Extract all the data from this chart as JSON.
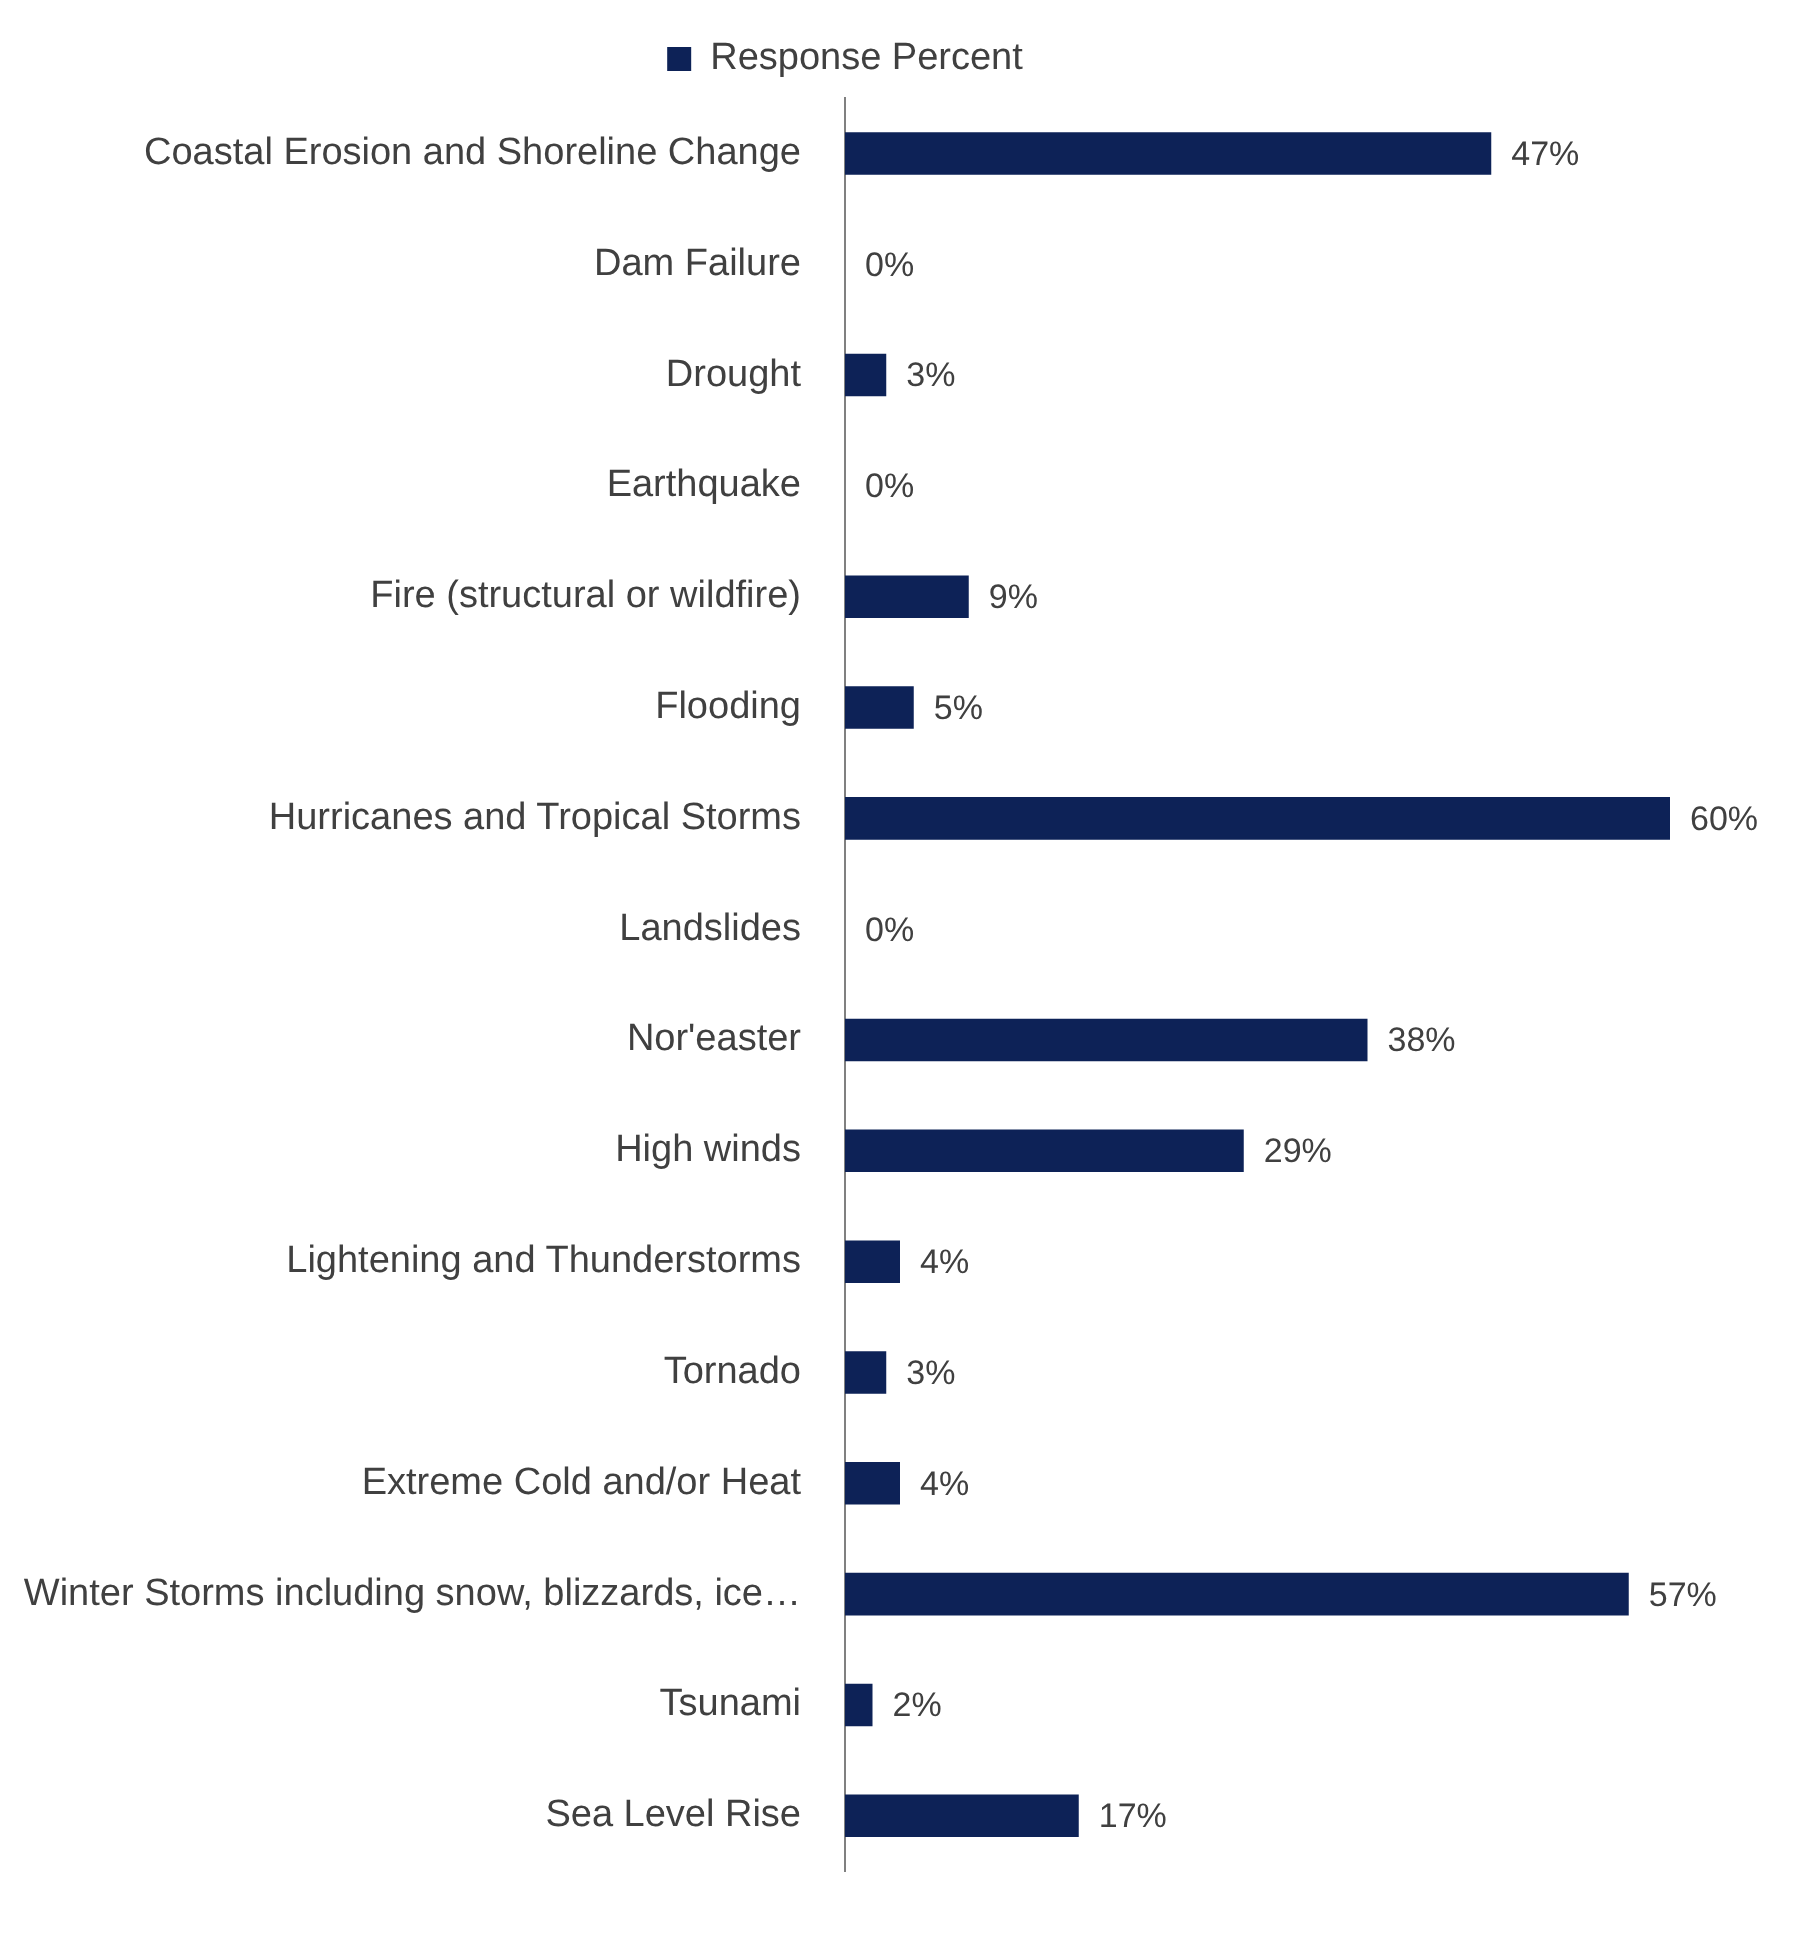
{
  "chart_data": {
    "type": "bar",
    "orientation": "horizontal",
    "legend": "top",
    "tick_labels": "y",
    "categories": [
      "Coastal Erosion and Shoreline Change",
      "Dam Failure",
      "Drought",
      "Earthquake",
      "Fire (structural or wildfire)",
      "Flooding",
      "Hurricanes and Tropical Storms",
      "Landslides",
      "Nor'easter",
      "High winds",
      "Lightening and Thunderstorms",
      "Tornado",
      "Extreme Cold and/or Heat",
      "Winter Storms including snow, blizzards, ice…",
      "Tsunami",
      "Sea Level Rise"
    ],
    "series": [
      {
        "name": "Response Percent",
        "color": "#0d2257",
        "values": [
          47,
          0,
          3,
          0,
          9,
          5,
          60,
          0,
          38,
          29,
          4,
          3,
          4,
          57,
          2,
          17
        ],
        "value_labels": [
          "47%",
          "0%",
          "3%",
          "0%",
          "9%",
          "5%",
          "60%",
          "0%",
          "38%",
          "29%",
          "4%",
          "3%",
          "4%",
          "57%",
          "2%",
          "17%"
        ]
      }
    ]
  }
}
